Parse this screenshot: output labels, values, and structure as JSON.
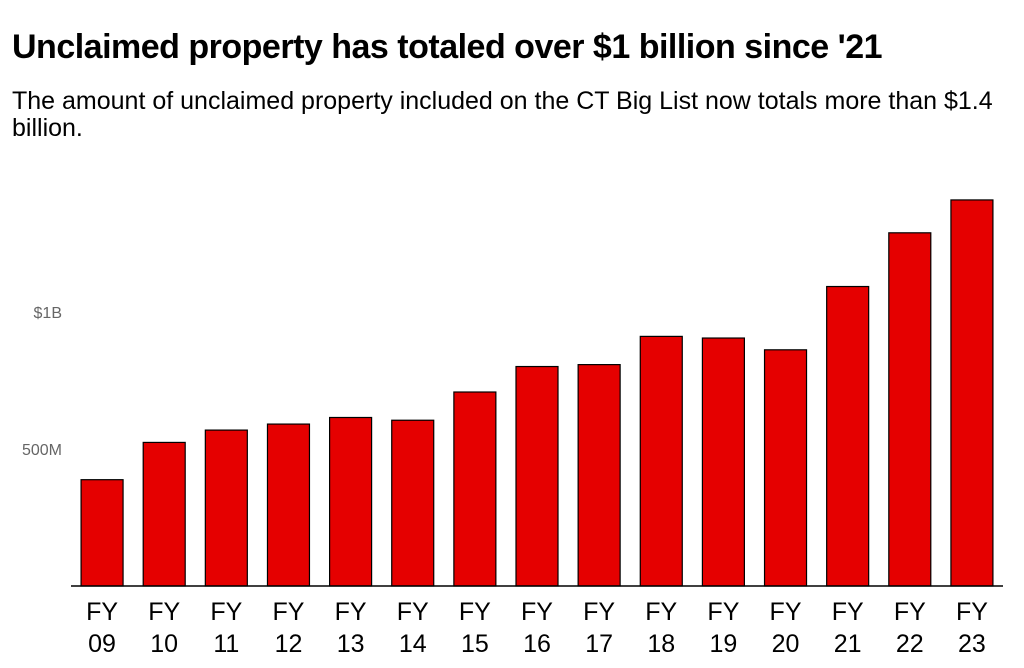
{
  "title": "Unclaimed property has totaled over $1 billion since '21",
  "subtitle": "The amount of unclaimed property included on the CT Big List now totals more than $1.4 billion.",
  "chart_data": {
    "type": "bar",
    "title": "Unclaimed property has totaled over $1 billion since '21",
    "subtitle": "The amount of unclaimed property included on the CT Big List now totals more than $1.4 billion.",
    "categories": [
      [
        "FY",
        "09"
      ],
      [
        "FY",
        "10"
      ],
      [
        "FY",
        "11"
      ],
      [
        "FY",
        "12"
      ],
      [
        "FY",
        "13"
      ],
      [
        "FY",
        "14"
      ],
      [
        "FY",
        "15"
      ],
      [
        "FY",
        "16"
      ],
      [
        "FY",
        "17"
      ],
      [
        "FY",
        "18"
      ],
      [
        "FY",
        "19"
      ],
      [
        "FY",
        "20"
      ],
      [
        "FY",
        "21"
      ],
      [
        "FY",
        "22"
      ],
      [
        "FY",
        "23"
      ]
    ],
    "values": [
      388000000,
      524000000,
      569000000,
      591000000,
      615000000,
      605000000,
      708000000,
      801000000,
      808000000,
      911000000,
      905000000,
      862000000,
      1093000000,
      1289000000,
      1409000000
    ],
    "y_ticks": [
      {
        "value": 500000000,
        "label": "500M"
      },
      {
        "value": 1000000000,
        "label": "$1B"
      }
    ],
    "ylim": [
      0,
      1480000000
    ],
    "xlabel": "",
    "ylabel": "",
    "grid": false,
    "legend": "none",
    "bar_color": "#e50000",
    "bar_outline": "#000000",
    "baseline_color": "#000000"
  }
}
